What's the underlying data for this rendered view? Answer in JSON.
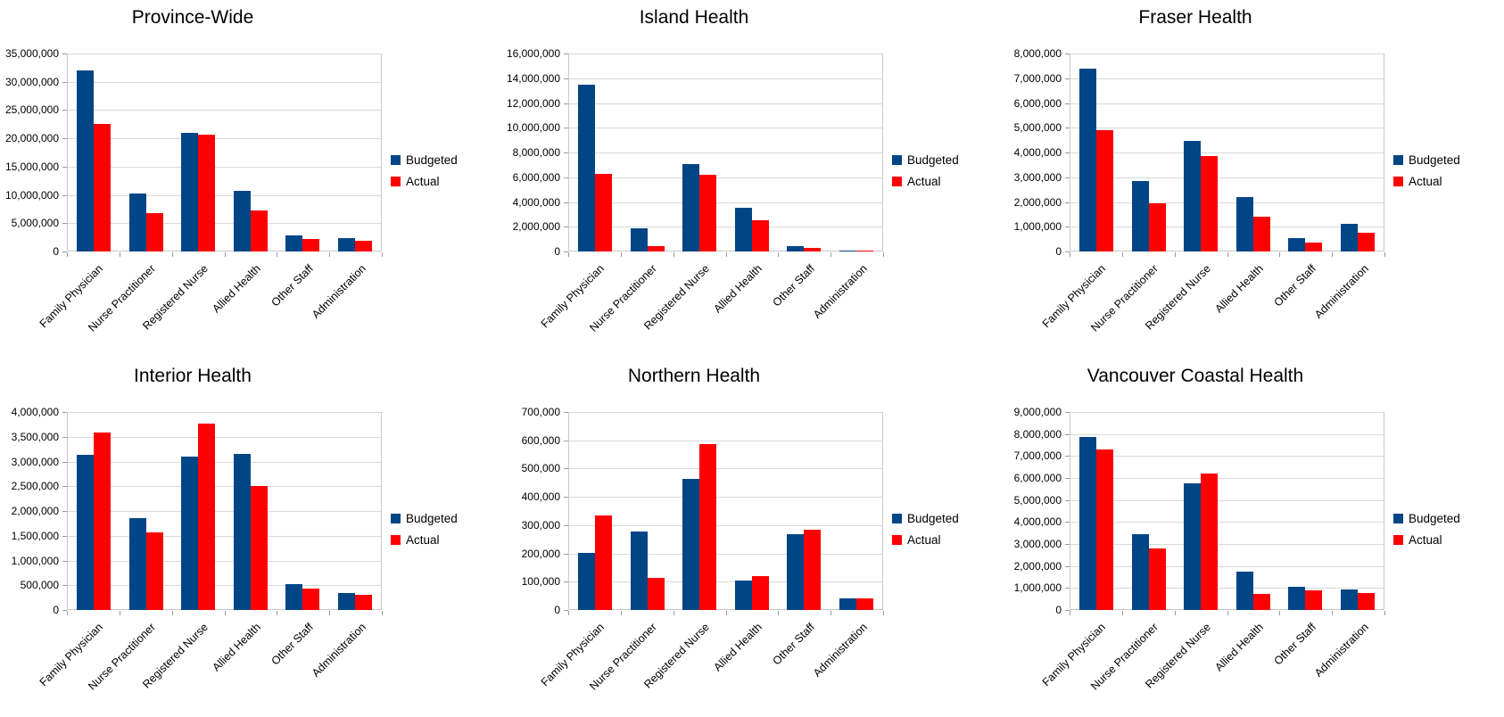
{
  "page": {
    "background": "#ffffff"
  },
  "colors": {
    "budgeted": "#004586",
    "actual": "#ff0000",
    "gridline": "#d9d9d9",
    "plot_border": "#c9c9c9",
    "tick": "#9b9b9b",
    "text": "#000000"
  },
  "legend": {
    "budgeted_label": "Budgeted",
    "actual_label": "Actual",
    "position": "right"
  },
  "chart_data": [
    {
      "type": "bar",
      "title": "Province-Wide",
      "categories": [
        "Family Physician",
        "Nurse Practitioner",
        "Registered Nurse",
        "Allied Health",
        "Other Staff",
        "Administration"
      ],
      "series": [
        {
          "name": "Budgeted",
          "color": "#004586",
          "values": [
            32000000,
            10300000,
            20900000,
            10700000,
            2800000,
            2400000
          ]
        },
        {
          "name": "Actual",
          "color": "#ff0000",
          "values": [
            22500000,
            6800000,
            20600000,
            7300000,
            2200000,
            1900000
          ]
        }
      ],
      "ylim": [
        0,
        35000000
      ],
      "ytick_step": 5000000,
      "grid": true,
      "legend_position": "right"
    },
    {
      "type": "bar",
      "title": "Island Health",
      "categories": [
        "Family Physician",
        "Nurse Practitioner",
        "Registered Nurse",
        "Allied Health",
        "Other Staff",
        "Administration"
      ],
      "series": [
        {
          "name": "Budgeted",
          "color": "#004586",
          "values": [
            13500000,
            1900000,
            7050000,
            3500000,
            450000,
            100000
          ]
        },
        {
          "name": "Actual",
          "color": "#ff0000",
          "values": [
            6250000,
            400000,
            6200000,
            2500000,
            280000,
            40000
          ]
        }
      ],
      "ylim": [
        0,
        16000000
      ],
      "ytick_step": 2000000,
      "grid": true,
      "legend_position": "right"
    },
    {
      "type": "bar",
      "title": "Fraser Health",
      "categories": [
        "Family Physician",
        "Nurse Practitioner",
        "Registered Nurse",
        "Allied Health",
        "Other Staff",
        "Administration"
      ],
      "series": [
        {
          "name": "Budgeted",
          "color": "#004586",
          "values": [
            7380000,
            2850000,
            4470000,
            2200000,
            530000,
            1120000
          ]
        },
        {
          "name": "Actual",
          "color": "#ff0000",
          "values": [
            4900000,
            1950000,
            3850000,
            1400000,
            350000,
            760000
          ]
        }
      ],
      "ylim": [
        0,
        8000000
      ],
      "ytick_step": 1000000,
      "grid": true,
      "legend_position": "right"
    },
    {
      "type": "bar",
      "title": "Interior Health",
      "categories": [
        "Family Physician",
        "Nurse Practitioner",
        "Registered Nurse",
        "Allied Health",
        "Other Staff",
        "Administration"
      ],
      "series": [
        {
          "name": "Budgeted",
          "color": "#004586",
          "values": [
            3130000,
            1850000,
            3100000,
            3150000,
            530000,
            340000
          ]
        },
        {
          "name": "Actual",
          "color": "#ff0000",
          "values": [
            3580000,
            1560000,
            3760000,
            2500000,
            440000,
            310000
          ]
        }
      ],
      "ylim": [
        0,
        4000000
      ],
      "ytick_step": 500000,
      "grid": true,
      "legend_position": "right"
    },
    {
      "type": "bar",
      "title": "Northern Health",
      "categories": [
        "Family Physician",
        "Nurse Practitioner",
        "Registered Nurse",
        "Allied Health",
        "Other Staff",
        "Administration"
      ],
      "series": [
        {
          "name": "Budgeted",
          "color": "#004586",
          "values": [
            203000,
            278000,
            463000,
            103000,
            268000,
            41000
          ]
        },
        {
          "name": "Actual",
          "color": "#ff0000",
          "values": [
            335000,
            113000,
            585000,
            120000,
            283000,
            41000
          ]
        }
      ],
      "ylim": [
        0,
        700000
      ],
      "ytick_step": 100000,
      "grid": true,
      "legend_position": "right"
    },
    {
      "type": "bar",
      "title": "Vancouver Coastal Health",
      "categories": [
        "Family Physician",
        "Nurse Practitioner",
        "Registered Nurse",
        "Allied Health",
        "Other Staff",
        "Administration"
      ],
      "series": [
        {
          "name": "Budgeted",
          "color": "#004586",
          "values": [
            7850000,
            3450000,
            5750000,
            1730000,
            1050000,
            930000
          ]
        },
        {
          "name": "Actual",
          "color": "#ff0000",
          "values": [
            7300000,
            2780000,
            6200000,
            730000,
            880000,
            790000
          ]
        }
      ],
      "ylim": [
        0,
        9000000
      ],
      "ytick_step": 1000000,
      "grid": true,
      "legend_position": "right"
    }
  ]
}
